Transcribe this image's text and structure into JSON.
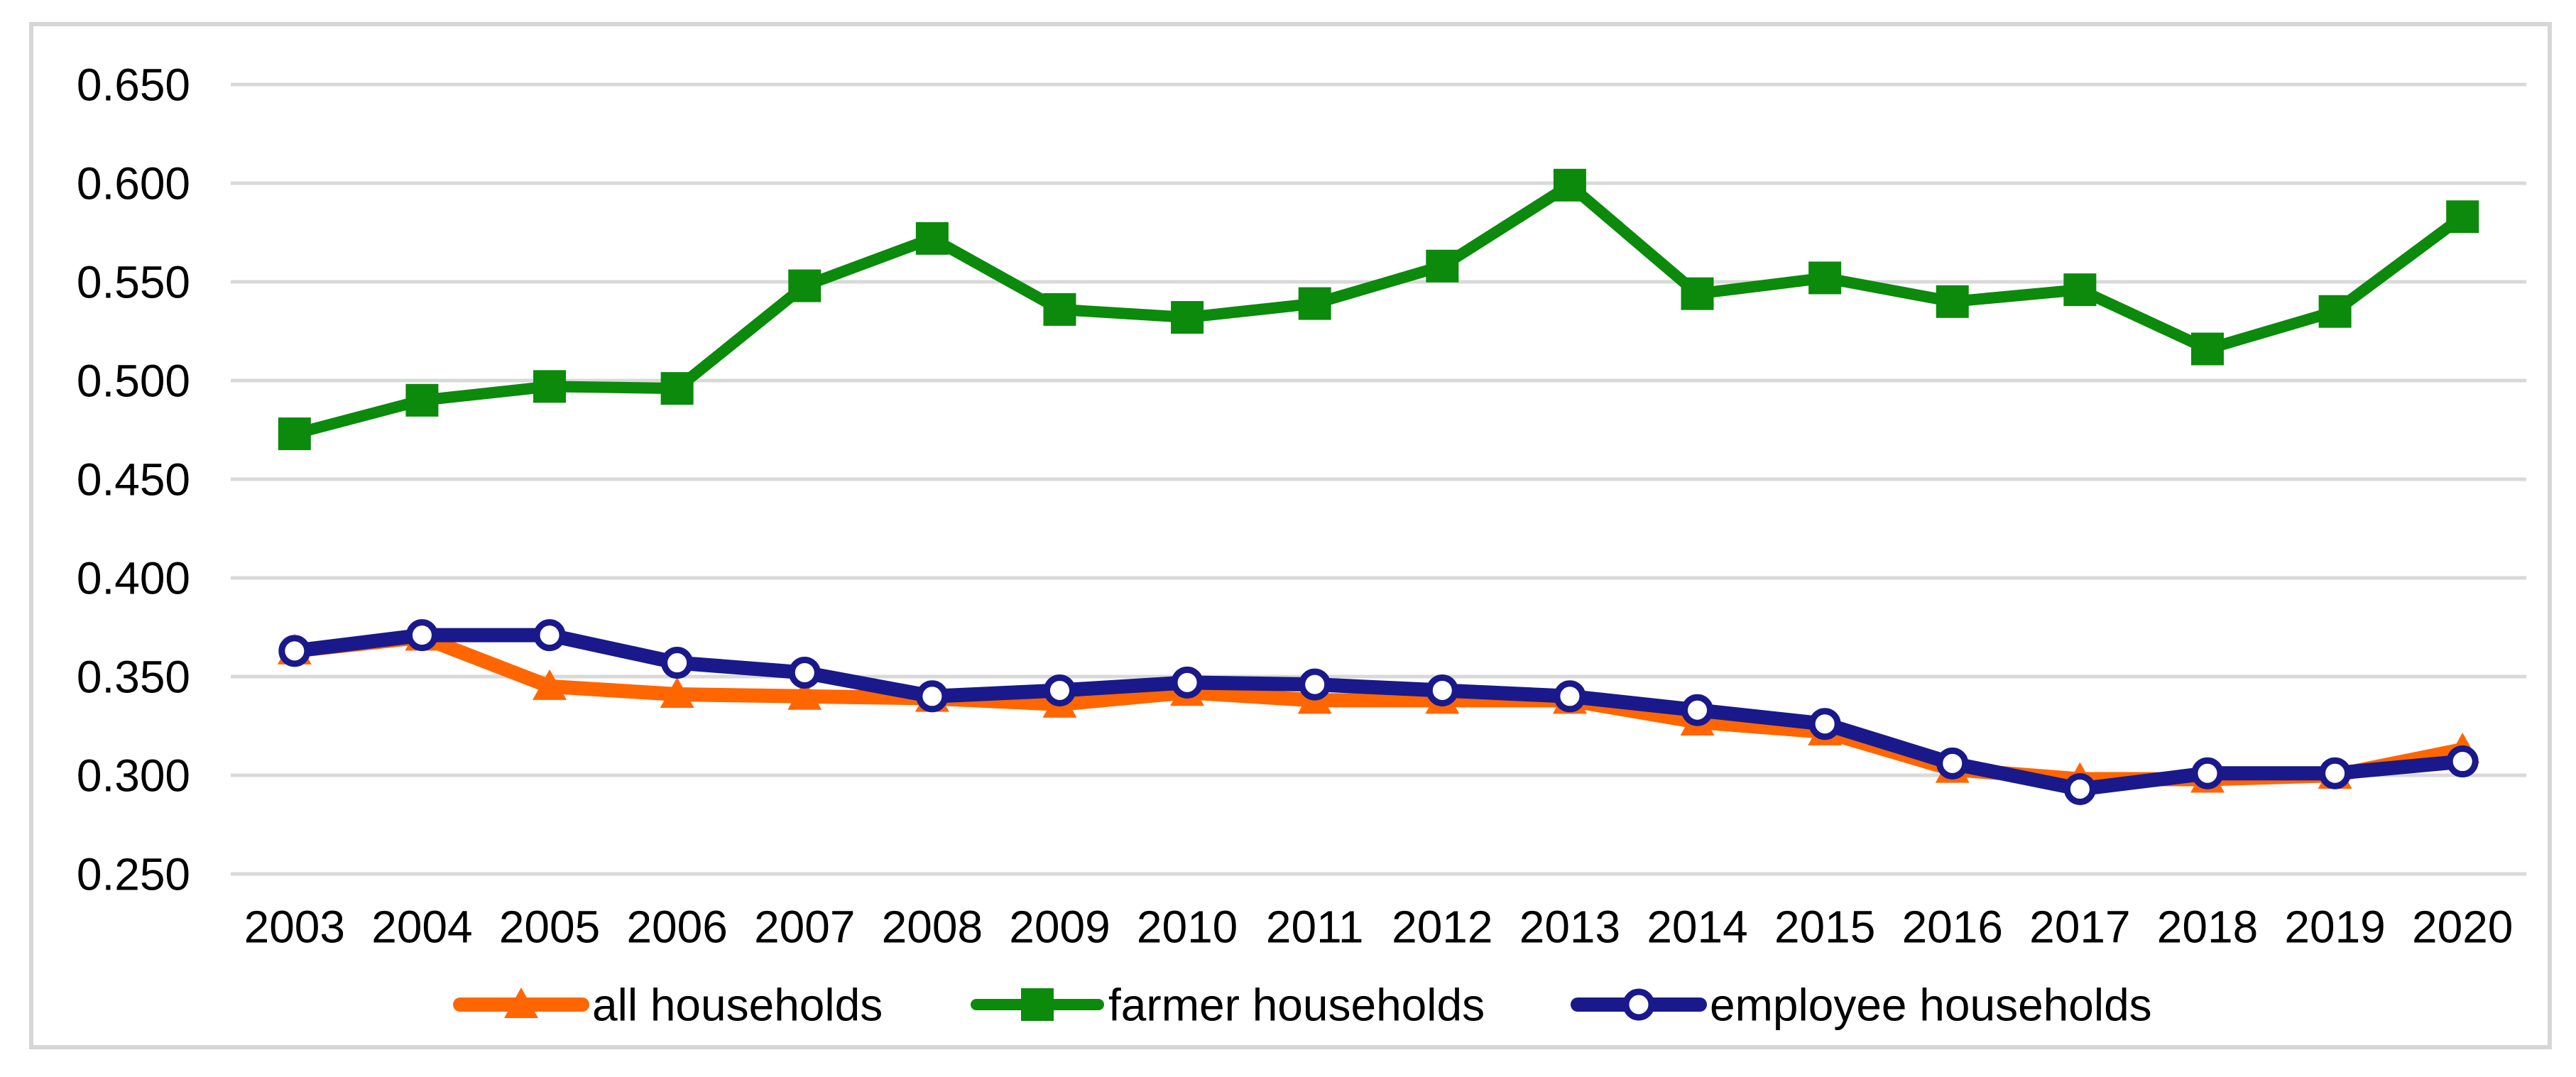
{
  "figure": {
    "background": "#ffffff",
    "frame_color": "#d6d6d6",
    "gridline_color": "#d9d9d9",
    "text_color": "#000000"
  },
  "chart_data": {
    "type": "line",
    "title": "",
    "xlabel": "",
    "ylabel": "",
    "x": [
      "2003",
      "2004",
      "2005",
      "2006",
      "2007",
      "2008",
      "2009",
      "2010",
      "2011",
      "2012",
      "2013",
      "2014",
      "2015",
      "2016",
      "2017",
      "2018",
      "2019",
      "2020"
    ],
    "ylim": [
      0.25,
      0.65
    ],
    "y_tick_step": 0.05,
    "y_tick_labels": [
      "0.250",
      "0.300",
      "0.350",
      "0.400",
      "0.450",
      "0.500",
      "0.550",
      "0.600",
      "0.650"
    ],
    "grid": "horizontal",
    "legend_position": "bottom",
    "series": [
      {
        "name": "all households",
        "color": "#ff6600",
        "marker": "triangle",
        "values": [
          0.363,
          0.37,
          0.345,
          0.341,
          0.34,
          0.339,
          0.336,
          0.342,
          0.338,
          0.338,
          0.338,
          0.327,
          0.322,
          0.303,
          0.298,
          0.298,
          0.3,
          0.313
        ]
      },
      {
        "name": "farmer households",
        "color": "#0b8a0b",
        "marker": "square",
        "values": [
          0.473,
          0.49,
          0.497,
          0.496,
          0.548,
          0.572,
          0.536,
          0.532,
          0.539,
          0.558,
          0.599,
          0.544,
          0.552,
          0.54,
          0.546,
          0.516,
          0.535,
          0.583
        ]
      },
      {
        "name": "employee households",
        "color": "#19198c",
        "marker": "circle-open",
        "values": [
          0.363,
          0.371,
          0.371,
          0.357,
          0.352,
          0.34,
          0.343,
          0.347,
          0.346,
          0.343,
          0.34,
          0.333,
          0.326,
          0.306,
          0.293,
          0.301,
          0.301,
          0.307
        ]
      }
    ]
  }
}
